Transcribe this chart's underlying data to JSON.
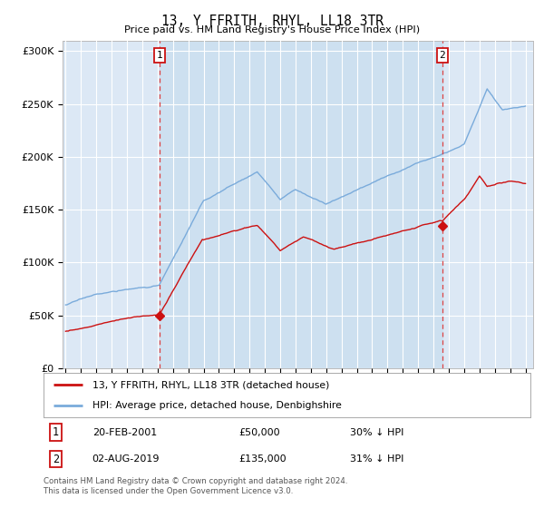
{
  "title": "13, Y FFRITH, RHYL, LL18 3TR",
  "subtitle": "Price paid vs. HM Land Registry's House Price Index (HPI)",
  "ylim": [
    0,
    310000
  ],
  "xlim_start": 1994.8,
  "xlim_end": 2025.5,
  "yticks": [
    0,
    50000,
    100000,
    150000,
    200000,
    250000,
    300000
  ],
  "ytick_labels": [
    "£0",
    "£50K",
    "£100K",
    "£150K",
    "£200K",
    "£250K",
    "£300K"
  ],
  "background_color": "#ffffff",
  "plot_background": "#dce8f5",
  "shade_color": "#cde0f0",
  "grid_color": "#ffffff",
  "hpi_color": "#7aabdb",
  "price_color": "#cc1111",
  "vline_color": "#dd4444",
  "sale1_date": 2001.13,
  "sale1_price": 50000,
  "sale2_date": 2019.58,
  "sale2_price": 135000,
  "legend_house_label": "13, Y FFRITH, RHYL, LL18 3TR (detached house)",
  "legend_hpi_label": "HPI: Average price, detached house, Denbighshire",
  "footer": "Contains HM Land Registry data © Crown copyright and database right 2024.\nThis data is licensed under the Open Government Licence v3.0.",
  "xtick_years": [
    1995,
    1996,
    1997,
    1998,
    1999,
    2000,
    2001,
    2002,
    2003,
    2004,
    2005,
    2006,
    2007,
    2008,
    2009,
    2010,
    2011,
    2012,
    2013,
    2014,
    2015,
    2016,
    2017,
    2018,
    2019,
    2020,
    2021,
    2022,
    2023,
    2024,
    2025
  ]
}
